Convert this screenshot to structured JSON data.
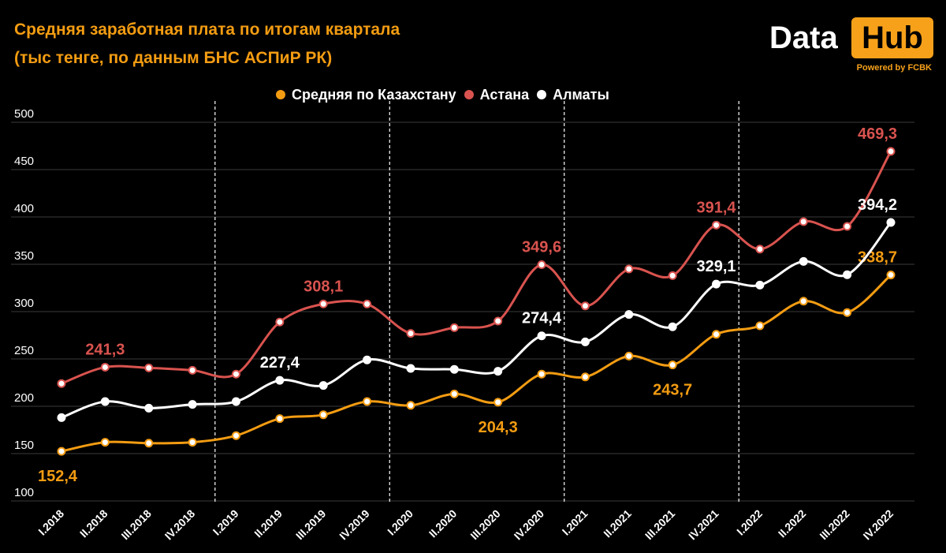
{
  "header": {
    "title_line1": "Средняя заработная плата по итогам квартала",
    "title_line2": "(тыс тенге, по данным БНС АСПиР РК)"
  },
  "logo": {
    "word": "Data",
    "box_word": "Hub",
    "tagline": "Powered by FCBK",
    "icon": "datahub-logo"
  },
  "colors": {
    "background": "#000000",
    "kazakhstan": "#f39c12",
    "astana": "#d9534f",
    "almaty": "#ffffff",
    "grid": "#3a3a3a",
    "separator": "#ffffff"
  },
  "chart_data": {
    "type": "line",
    "title": "Средняя заработная плата по итогам квартала",
    "subtitle": "(тыс тенге, по данным БНС АСПиР РК)",
    "xlabel": "",
    "ylabel": "",
    "ylim": [
      100,
      500
    ],
    "yticks": [
      100,
      150,
      200,
      250,
      300,
      350,
      400,
      450,
      500
    ],
    "grid": true,
    "legend_position": "top-center",
    "categories": [
      "I.2018",
      "II.2018",
      "III.2018",
      "IV.2018",
      "I.2019",
      "II.2019",
      "III.2019",
      "IV.2019",
      "I.2020",
      "II.2020",
      "III.2020",
      "IV.2020",
      "I.2021",
      "II.2021",
      "III.2021",
      "IV.2021",
      "I.2022",
      "II.2022",
      "III.2022",
      "IV.2022"
    ],
    "year_separators_after": [
      "IV.2018",
      "IV.2019",
      "IV.2020",
      "IV.2021"
    ],
    "series": [
      {
        "name": "Средняя по Казахстану",
        "color": "#f39c12",
        "values": [
          152.4,
          162,
          161,
          162,
          169,
          187,
          191,
          205,
          201,
          213,
          204.3,
          234,
          231,
          253,
          243.7,
          276,
          285,
          311,
          299,
          338.7
        ],
        "labels": [
          {
            "index": 0,
            "text": "152,4",
            "position": "below"
          },
          {
            "index": 10,
            "text": "204,3",
            "position": "below"
          },
          {
            "index": 14,
            "text": "243,7",
            "position": "below"
          },
          {
            "index": 19,
            "text": "338,7",
            "position": "above"
          }
        ]
      },
      {
        "name": "Астана",
        "color": "#d9534f",
        "values": [
          224,
          241.3,
          240.5,
          238,
          234,
          289,
          308.1,
          308,
          277,
          283,
          290,
          349.6,
          306,
          345,
          338,
          391.4,
          366,
          395,
          390,
          469.3
        ],
        "labels": [
          {
            "index": 1,
            "text": "241,3",
            "position": "above"
          },
          {
            "index": 6,
            "text": "308,1",
            "position": "above"
          },
          {
            "index": 11,
            "text": "349,6",
            "position": "above"
          },
          {
            "index": 15,
            "text": "391,4",
            "position": "above"
          },
          {
            "index": 19,
            "text": "469,3",
            "position": "above"
          }
        ]
      },
      {
        "name": "Алматы",
        "color": "#ffffff",
        "values": [
          188,
          205,
          198,
          202,
          205,
          227.4,
          222,
          249,
          240,
          239,
          237,
          274.4,
          268,
          297,
          284,
          329.1,
          328,
          353,
          339,
          394.2
        ],
        "labels": [
          {
            "index": 5,
            "text": "227,4",
            "position": "above"
          },
          {
            "index": 11,
            "text": "274,4",
            "position": "above"
          },
          {
            "index": 15,
            "text": "329,1",
            "position": "above"
          },
          {
            "index": 19,
            "text": "394,2",
            "position": "above"
          }
        ]
      }
    ]
  }
}
